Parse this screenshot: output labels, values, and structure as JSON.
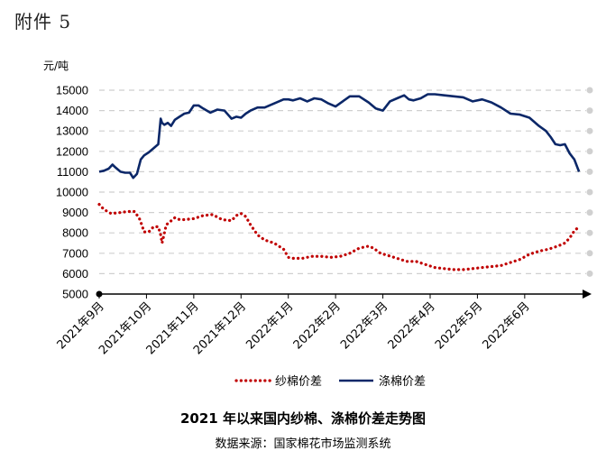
{
  "attachment_label": "附件 5",
  "caption": {
    "title": "2021 年以来国内纱棉、涤棉价差走势图",
    "source": "数据来源：国家棉花市场监测系统"
  },
  "chart_data": {
    "type": "line",
    "title": "2021 年以来国内纱棉、涤棉价差走势图",
    "ylabel": "元/吨",
    "xlabel": "",
    "ylim": [
      5000,
      15000
    ],
    "yticks": [
      5000,
      6000,
      7000,
      8000,
      9000,
      10000,
      11000,
      12000,
      13000,
      14000,
      15000
    ],
    "xticks": [
      "2021年9月",
      "2021年10月",
      "2021年11月",
      "2021年12月",
      "2022年1月",
      "2022年2月",
      "2022年3月",
      "2022年4月",
      "2022年5月",
      "2022年6月"
    ],
    "xlim": [
      0,
      10.3
    ],
    "grid": "horizontal dashed",
    "legend": "bottom",
    "series": [
      {
        "name": "纱棉价差",
        "color": "#c00000",
        "style": "dotted",
        "x": [
          0.0,
          0.1,
          0.25,
          0.45,
          0.6,
          0.75,
          0.85,
          0.9,
          0.95,
          1.0,
          1.05,
          1.15,
          1.25,
          1.3,
          1.33,
          1.38,
          1.42,
          1.5,
          1.6,
          1.7,
          1.8,
          2.0,
          2.2,
          2.4,
          2.6,
          2.8,
          2.9,
          3.0,
          3.1,
          3.2,
          3.35,
          3.5,
          3.7,
          3.9,
          4.0,
          4.1,
          4.3,
          4.5,
          4.7,
          4.9,
          5.1,
          5.3,
          5.5,
          5.7,
          5.8,
          5.95,
          6.1,
          6.3,
          6.5,
          6.7,
          6.9,
          7.1,
          7.3,
          7.5,
          7.7,
          7.9,
          8.1,
          8.3,
          8.5,
          8.7,
          8.9,
          9.1,
          9.3,
          9.5,
          9.7,
          9.85,
          9.95,
          10.05,
          10.15
        ],
        "values": [
          9400,
          9150,
          8950,
          9000,
          9050,
          9050,
          8700,
          8400,
          8050,
          8050,
          8050,
          8300,
          8300,
          7900,
          7500,
          8000,
          8400,
          8550,
          8750,
          8650,
          8650,
          8700,
          8850,
          8900,
          8650,
          8600,
          8850,
          8950,
          8800,
          8400,
          7900,
          7650,
          7500,
          7200,
          6800,
          6750,
          6750,
          6850,
          6850,
          6800,
          6850,
          7000,
          7250,
          7350,
          7250,
          7000,
          6900,
          6750,
          6600,
          6600,
          6450,
          6300,
          6250,
          6200,
          6200,
          6250,
          6300,
          6350,
          6400,
          6550,
          6700,
          6950,
          7100,
          7200,
          7350,
          7500,
          7750,
          8100,
          8300
        ]
      },
      {
        "name": "涤棉价差",
        "color": "#0b2768",
        "style": "solid",
        "x": [
          0.0,
          0.1,
          0.2,
          0.28,
          0.35,
          0.45,
          0.55,
          0.65,
          0.72,
          0.8,
          0.88,
          0.95,
          1.05,
          1.15,
          1.25,
          1.3,
          1.33,
          1.38,
          1.45,
          1.52,
          1.6,
          1.7,
          1.8,
          1.9,
          2.0,
          2.1,
          2.2,
          2.35,
          2.5,
          2.65,
          2.8,
          2.9,
          3.0,
          3.1,
          3.2,
          3.35,
          3.5,
          3.7,
          3.9,
          4.0,
          4.1,
          4.25,
          4.4,
          4.55,
          4.7,
          4.85,
          5.0,
          5.15,
          5.3,
          5.5,
          5.7,
          5.85,
          6.0,
          6.15,
          6.3,
          6.45,
          6.55,
          6.65,
          6.8,
          6.95,
          7.1,
          7.3,
          7.5,
          7.7,
          7.9,
          8.1,
          8.3,
          8.5,
          8.7,
          8.9,
          9.1,
          9.3,
          9.45,
          9.55,
          9.65,
          9.75,
          9.85,
          9.95,
          10.05,
          10.15
        ],
        "values": [
          11000,
          11050,
          11150,
          11350,
          11200,
          11000,
          10950,
          10950,
          10700,
          10900,
          11600,
          11800,
          11950,
          12150,
          12350,
          13600,
          13400,
          13300,
          13400,
          13250,
          13550,
          13700,
          13850,
          13900,
          14250,
          14250,
          14100,
          13900,
          14050,
          14000,
          13600,
          13700,
          13650,
          13850,
          14000,
          14150,
          14150,
          14350,
          14550,
          14550,
          14500,
          14600,
          14450,
          14600,
          14550,
          14350,
          14200,
          14450,
          14700,
          14700,
          14400,
          14100,
          14000,
          14450,
          14600,
          14750,
          14550,
          14500,
          14600,
          14800,
          14800,
          14750,
          14700,
          14650,
          14450,
          14550,
          14400,
          14150,
          13850,
          13800,
          13650,
          13250,
          13000,
          12700,
          12350,
          12300,
          12350,
          11900,
          11600,
          11000
        ]
      }
    ]
  }
}
